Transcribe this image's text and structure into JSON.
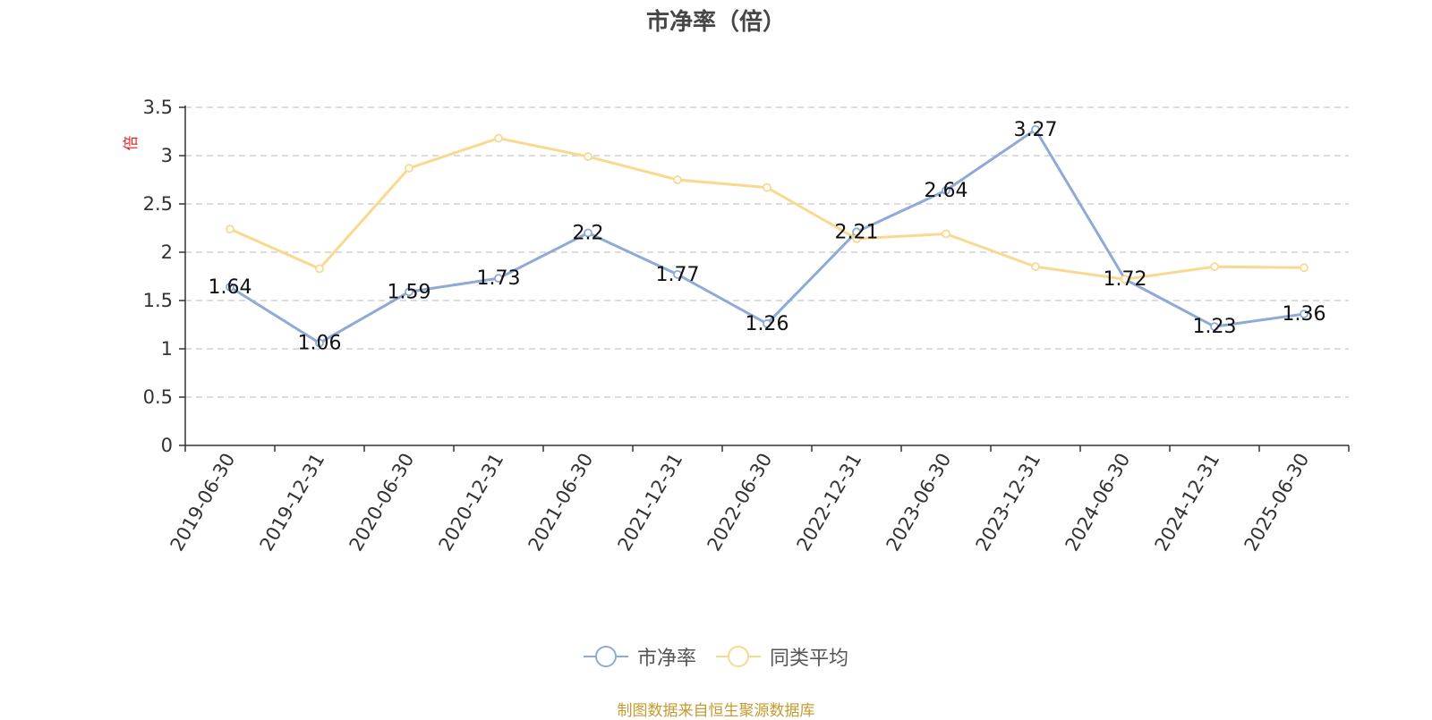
{
  "chart_data": {
    "type": "line",
    "title": "市净率（倍）",
    "ylabel": "倍",
    "xlabel": "",
    "ylim": [
      0,
      3.5
    ],
    "yticks": [
      "0",
      "0.5",
      "1",
      "1.5",
      "2",
      "2.5",
      "3",
      "3.5"
    ],
    "grid": true,
    "legend_position": "bottom",
    "categories": [
      "2019-06-30",
      "2019-12-31",
      "2020-06-30",
      "2020-12-31",
      "2021-06-30",
      "2021-12-31",
      "2022-06-30",
      "2022-12-31",
      "2023-06-30",
      "2023-12-31",
      "2024-06-30",
      "2024-12-31",
      "2025-06-30"
    ],
    "series": [
      {
        "name": "市净率",
        "color": "#8eaad6",
        "values": [
          1.64,
          1.06,
          1.59,
          1.73,
          2.2,
          1.77,
          1.26,
          2.21,
          2.64,
          3.27,
          1.72,
          1.23,
          1.36
        ],
        "labels": [
          "1.64",
          "1.06",
          "1.59",
          "1.73",
          "2.2",
          "1.77",
          "1.26",
          "2.21",
          "2.64",
          "3.27",
          "1.72",
          "1.23",
          "1.36"
        ]
      },
      {
        "name": "同类平均",
        "color": "#f9d98f",
        "values": [
          2.24,
          1.83,
          2.87,
          3.18,
          2.99,
          2.75,
          2.67,
          2.14,
          2.19,
          1.85,
          1.72,
          1.85,
          1.84
        ]
      }
    ]
  },
  "footer": {
    "source": "制图数据来自恒生聚源数据库"
  }
}
